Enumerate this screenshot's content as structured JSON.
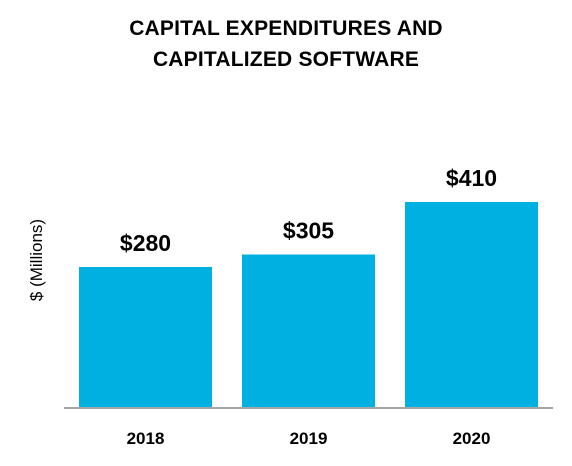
{
  "chart_data": {
    "type": "bar",
    "title_lines": [
      "CAPITAL EXPENDITURES AND",
      "CAPITALIZED SOFTWARE"
    ],
    "ylabel": "$ (Millions)",
    "xlabel": "",
    "categories": [
      "2018",
      "2019",
      "2020"
    ],
    "values": [
      280,
      305,
      410
    ],
    "value_labels": [
      "$280",
      "$305",
      "$410"
    ],
    "ylim": [
      0,
      450
    ],
    "grid": false,
    "legend": "none",
    "bar_color": "#00b0e0",
    "axis_color": "#a6a6a6"
  }
}
